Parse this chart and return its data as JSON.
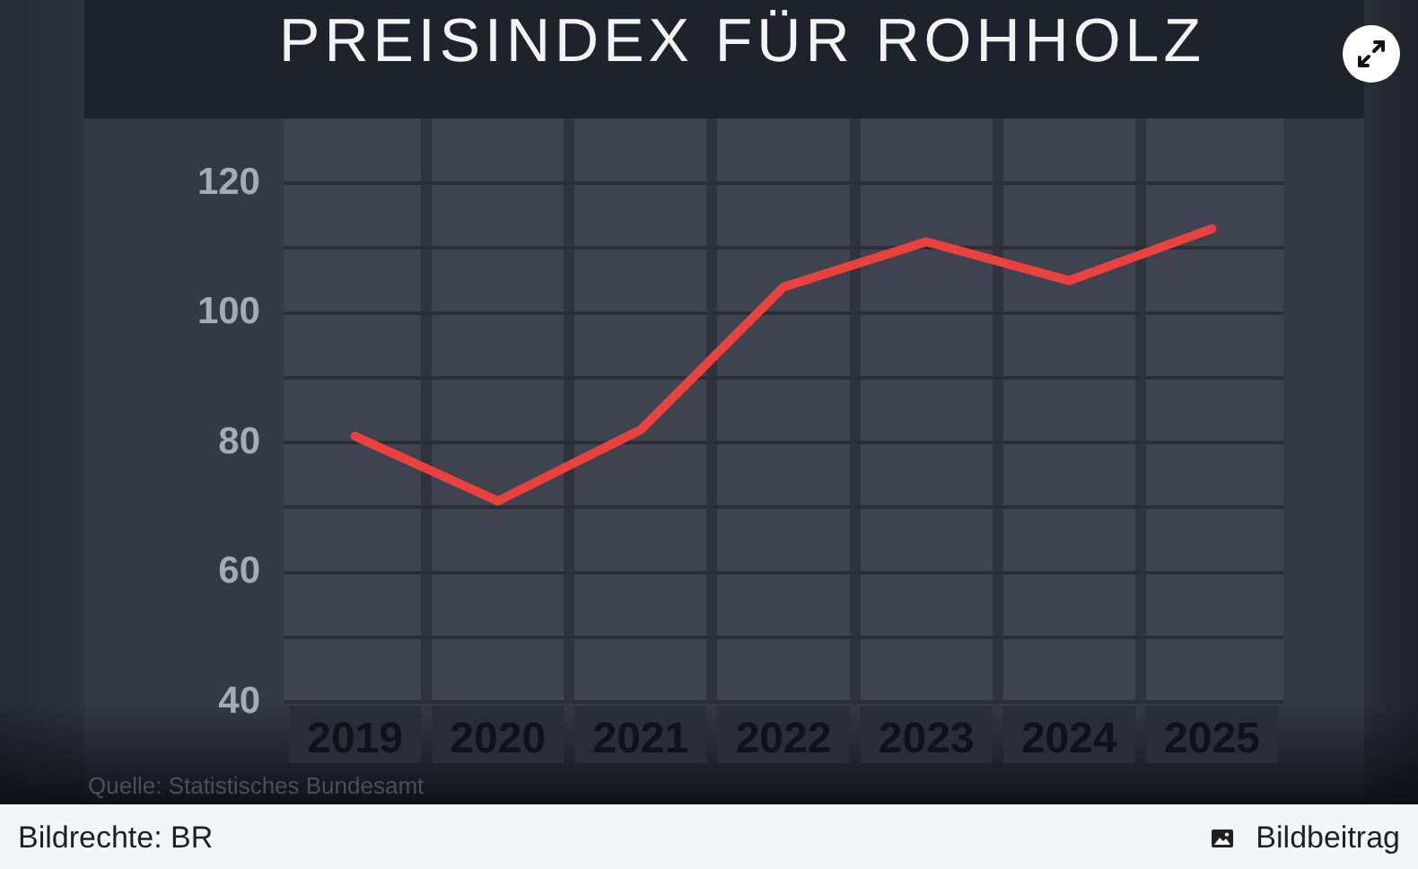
{
  "chart_data": {
    "type": "line",
    "title": "PREISINDEX FÜR ROHHOLZ",
    "categories": [
      "2019",
      "2020",
      "2021",
      "2022",
      "2023",
      "2024",
      "2025"
    ],
    "values": [
      81,
      71,
      82,
      104,
      111,
      105,
      113
    ],
    "color": "#e8413e",
    "line_style": "solid",
    "ylim": [
      40,
      130
    ],
    "yticks": [
      40,
      {
        "value": 50,
        "label": null
      },
      60,
      {
        "value": 70,
        "label": null
      },
      80,
      {
        "value": 90,
        "label": null
      },
      100,
      {
        "value": 110,
        "label": null
      },
      120
    ],
    "grid": true,
    "annotations": [
      "Quelle: Statistisches Bundesamt",
      "Bildrechte: BR",
      "Bildbeitrag"
    ]
  }
}
